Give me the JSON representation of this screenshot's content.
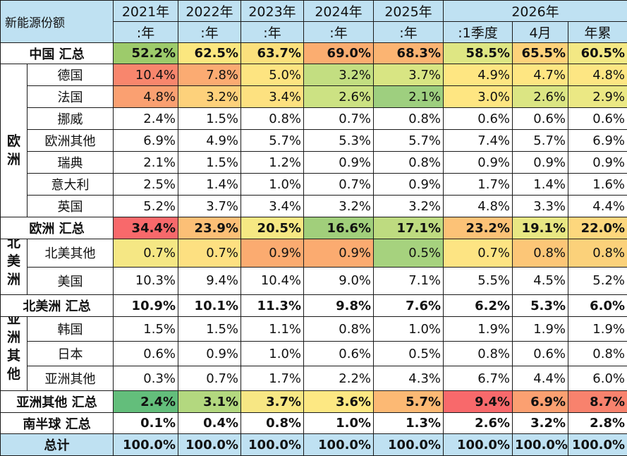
{
  "header": {
    "corner": "新能源份额",
    "years": [
      "2021年",
      "2022年",
      "2023年",
      "2024年",
      "2025年"
    ],
    "year_2026": "2026年",
    "subs": [
      ":年",
      ":年",
      ":年",
      ":年",
      ":年",
      ":1季度",
      "4月",
      "年累"
    ]
  },
  "regions": {
    "europe": "欧洲",
    "north_america": "北美洲",
    "asia": "亚洲其他"
  },
  "rows": [
    {
      "label": "中国 汇总",
      "type": "sum",
      "values": [
        "52.2%",
        "62.5%",
        "63.7%",
        "69.0%",
        "68.3%",
        "58.5%",
        "65.5%",
        "60.5%"
      ],
      "colors": [
        "#9dcb6b",
        "#fbe77f",
        "#fbe07c",
        "#fbad70",
        "#fbb472",
        "#dee683",
        "#fdd27a",
        "#f3e884"
      ]
    },
    {
      "label": "德国",
      "type": "item",
      "values": [
        "10.4%",
        "7.8%",
        "5.0%",
        "3.2%",
        "3.7%",
        "4.9%",
        "4.7%",
        "4.8%"
      ],
      "colors": [
        "#f8866d",
        "#fbab72",
        "#fde481",
        "#c3de81",
        "#d8e583",
        "#fee682",
        "#fee682",
        "#fde683"
      ]
    },
    {
      "label": "法国",
      "type": "item",
      "values": [
        "4.8%",
        "3.2%",
        "3.4%",
        "2.6%",
        "2.1%",
        "3.0%",
        "2.6%",
        "2.9%"
      ],
      "colors": [
        "#faa071",
        "#fdd17b",
        "#fde180",
        "#cce283",
        "#9ecf7f",
        "#fee682",
        "#dbe583",
        "#ebe884"
      ]
    },
    {
      "label": "挪威",
      "type": "item",
      "values": [
        "2.4%",
        "1.5%",
        "0.8%",
        "0.7%",
        "0.8%",
        "0.6%",
        "0.6%",
        "0.6%"
      ],
      "colors": []
    },
    {
      "label": "欧洲其他",
      "type": "item",
      "values": [
        "6.9%",
        "4.9%",
        "5.7%",
        "5.3%",
        "5.7%",
        "7.4%",
        "5.7%",
        "6.9%"
      ],
      "colors": []
    },
    {
      "label": "瑞典",
      "type": "item",
      "values": [
        "2.1%",
        "1.5%",
        "1.2%",
        "0.9%",
        "0.8%",
        "0.9%",
        "0.9%",
        "0.9%"
      ],
      "colors": []
    },
    {
      "label": "意大利",
      "type": "item",
      "values": [
        "2.5%",
        "1.4%",
        "1.0%",
        "0.7%",
        "0.9%",
        "1.7%",
        "1.4%",
        "1.6%"
      ],
      "colors": []
    },
    {
      "label": "英国",
      "type": "item",
      "values": [
        "5.2%",
        "3.7%",
        "3.4%",
        "3.2%",
        "3.2%",
        "4.8%",
        "3.3%",
        "4.4%"
      ],
      "colors": []
    },
    {
      "label": "欧洲 汇总",
      "type": "sum",
      "values": [
        "34.4%",
        "23.9%",
        "20.5%",
        "16.6%",
        "17.1%",
        "23.2%",
        "19.1%",
        "22.0%"
      ],
      "colors": [
        "#f8696b",
        "#fcbf76",
        "#f6e883",
        "#a1cf7b",
        "#bedb80",
        "#fcc277",
        "#e8e783",
        "#fdd77d"
      ]
    },
    {
      "label": "北美其他",
      "type": "item",
      "values": [
        "0.7%",
        "0.7%",
        "0.9%",
        "0.9%",
        "0.5%",
        "0.7%",
        "0.8%",
        "0.8%"
      ],
      "colors": [
        "#f5e784",
        "#fde081",
        "#fbab70",
        "#fbab70",
        "#a6d27e",
        "#fde483",
        "#fcc677",
        "#fbd17a"
      ]
    },
    {
      "label": "美国",
      "type": "item",
      "values": [
        "10.3%",
        "9.4%",
        "10.4%",
        "9.0%",
        "7.1%",
        "5.5%",
        "4.5%",
        "5.2%"
      ],
      "colors": []
    },
    {
      "label": "北美洲 汇总",
      "type": "sum",
      "values": [
        "10.9%",
        "10.1%",
        "11.3%",
        "9.8%",
        "7.6%",
        "6.2%",
        "5.3%",
        "6.0%"
      ],
      "colors": []
    },
    {
      "label": "韩国",
      "type": "item",
      "values": [
        "1.5%",
        "1.5%",
        "1.1%",
        "0.8%",
        "1.0%",
        "1.9%",
        "1.9%",
        "1.9%"
      ],
      "colors": []
    },
    {
      "label": "日本",
      "type": "item",
      "values": [
        "0.6%",
        "0.9%",
        "1.0%",
        "0.6%",
        "0.5%",
        "0.8%",
        "0.6%",
        "0.8%"
      ],
      "colors": []
    },
    {
      "label": "亚洲其他",
      "type": "item",
      "values": [
        "0.3%",
        "0.7%",
        "1.7%",
        "2.2%",
        "4.3%",
        "6.7%",
        "4.4%",
        "6.0%"
      ],
      "colors": []
    },
    {
      "label": "亚洲其他 汇总",
      "type": "sum",
      "values": [
        "2.4%",
        "3.1%",
        "3.7%",
        "3.6%",
        "5.7%",
        "9.4%",
        "6.9%",
        "8.7%"
      ],
      "colors": [
        "#63be7b",
        "#b3d87f",
        "#f7e784",
        "#fde883",
        "#fcb974",
        "#f8696b",
        "#fba071",
        "#f8826d"
      ]
    },
    {
      "label": "南半球 汇总",
      "type": "sum",
      "values": [
        "0.1%",
        "0.4%",
        "0.8%",
        "1.0%",
        "1.3%",
        "2.6%",
        "3.2%",
        "2.8%"
      ],
      "colors": []
    },
    {
      "label": "总计",
      "type": "total",
      "values": [
        "100.0%",
        "100.0%",
        "100.0%",
        "100.0%",
        "100.0%",
        "100.0%",
        "100.0%",
        "100.0%"
      ],
      "colors": []
    }
  ]
}
